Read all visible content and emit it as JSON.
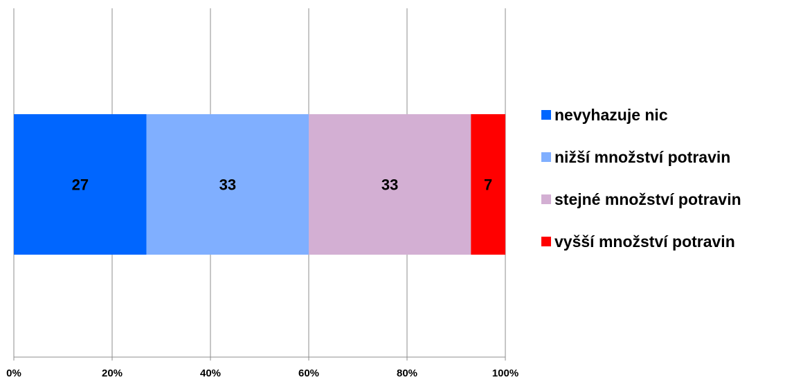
{
  "chart_data": {
    "type": "bar",
    "orientation": "horizontal",
    "stacked": true,
    "normalized_percent": true,
    "title": "",
    "xlabel": "",
    "ylabel": "",
    "xlim": [
      0,
      100
    ],
    "x_ticks": [
      "0%",
      "20%",
      "40%",
      "60%",
      "80%",
      "100%"
    ],
    "grid": "vertical",
    "legend_position": "right",
    "categories": [
      ""
    ],
    "series": [
      {
        "name": "nevyhazuje nic",
        "values": [
          27
        ],
        "label": "27",
        "color": "#0066FF"
      },
      {
        "name": "nižší množství potravin",
        "values": [
          33
        ],
        "label": "33",
        "color": "#80AFFF"
      },
      {
        "name": " stejné množství potravin",
        "values": [
          33
        ],
        "label": "33",
        "color": "#D3AFD3"
      },
      {
        "name": "vyšší množství potravin",
        "values": [
          7
        ],
        "label": "7",
        "color": "#FF0000"
      }
    ]
  }
}
